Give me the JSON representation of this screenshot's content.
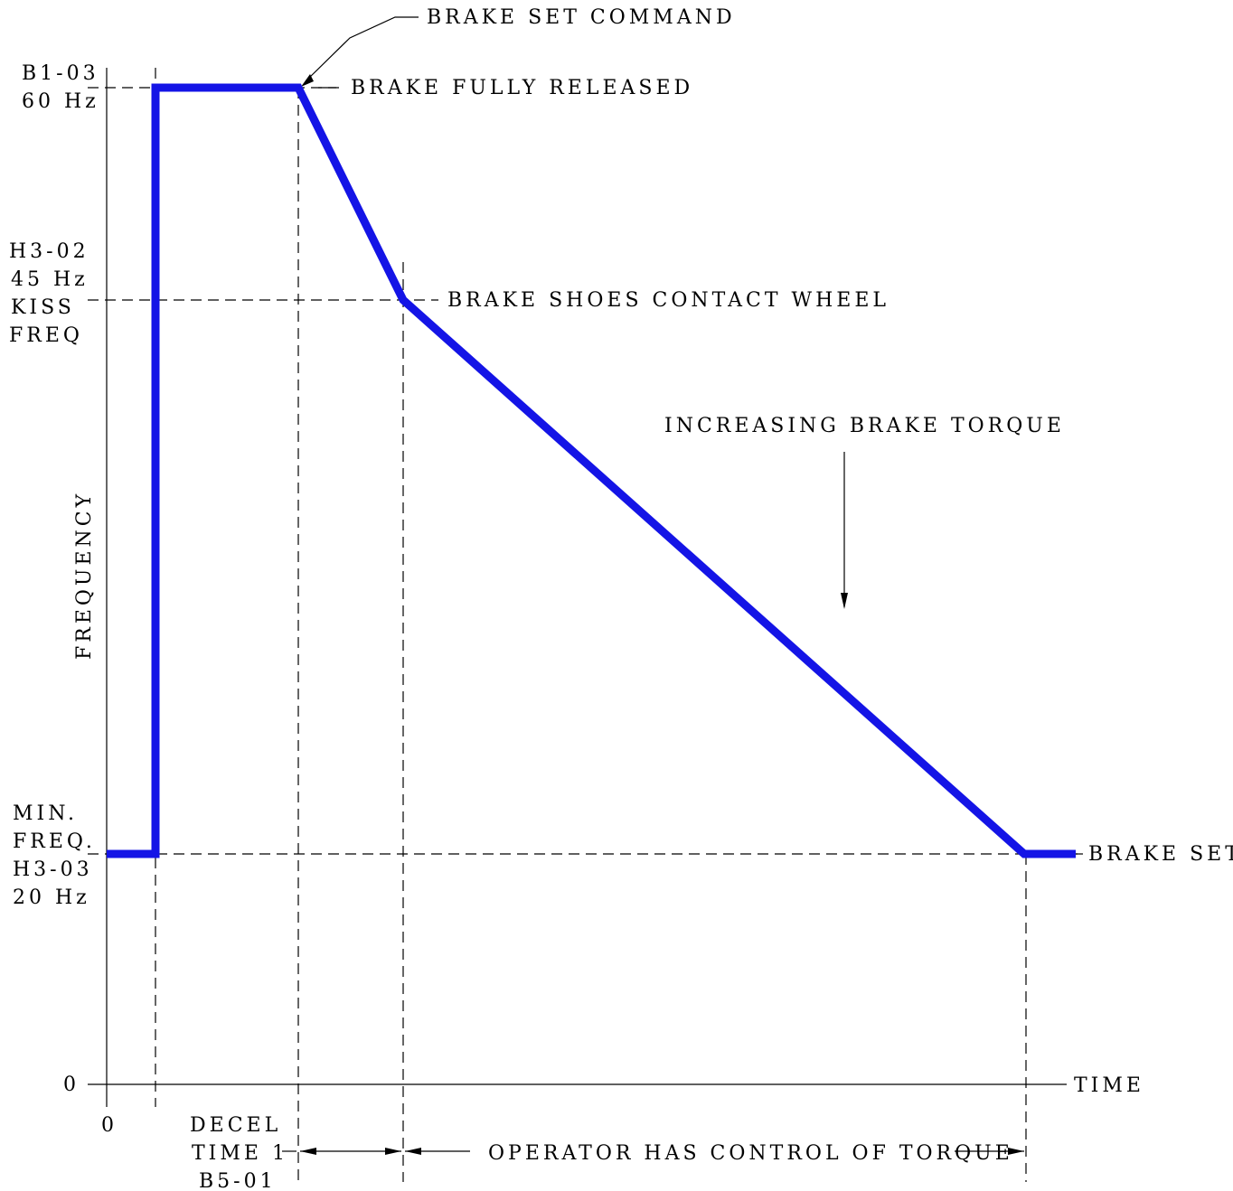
{
  "colors": {
    "curve": "#1414e6",
    "line": "#000000"
  },
  "labels": {
    "brake_set_command": "BRAKE SET COMMAND",
    "brake_fully_released": "BRAKE FULLY RELEASED",
    "brake_shoes_contact_wheel": "BRAKE SHOES CONTACT WHEEL",
    "increasing_brake_torque": "INCREASING BRAKE TORQUE",
    "brake_set": "BRAKE SET",
    "y_axis": "FREQUENCY",
    "x_axis": "TIME",
    "operator_control": "OPERATOR HAS CONTROL OF TORQUE",
    "decel_line1": "DECEL",
    "decel_line2": "TIME 1",
    "decel_line3": "B5-01",
    "origin_x": "0",
    "origin_y": "0"
  },
  "y_levels": {
    "b1_03": {
      "line1": "B1-03",
      "line2": "60 Hz"
    },
    "h3_02": {
      "line1": "H3-02",
      "line2": "45 Hz",
      "line3": "KISS",
      "line4": "FREQ"
    },
    "min": {
      "line1": "MIN.",
      "line2": "FREQ.",
      "line3": "H3-03",
      "line4": "20 Hz"
    }
  }
}
